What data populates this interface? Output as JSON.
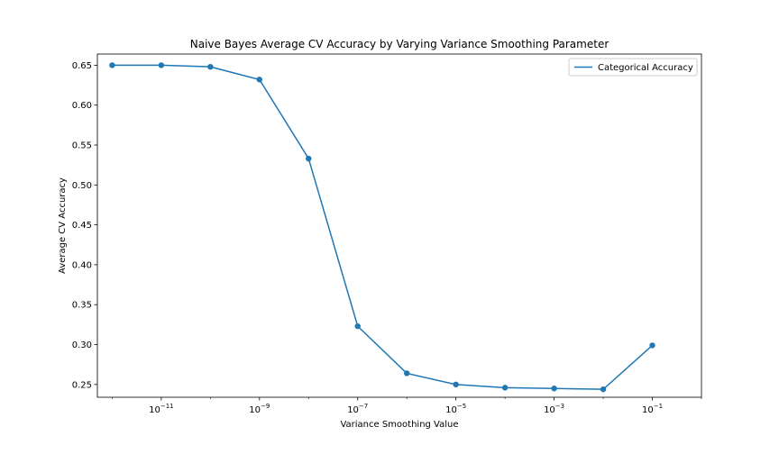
{
  "chart_data": {
    "type": "line",
    "title": "Naive Bayes Average CV Accuracy by Varying Variance Smoothing Parameter",
    "xlabel": "Variance Smoothing Value",
    "ylabel": "Average CV Accuracy",
    "xscale": "log",
    "xlim": [
      5e-13,
      1
    ],
    "ylim": [
      0.234,
      0.664
    ],
    "grid": false,
    "legend": "top-right",
    "x_ticks": [
      {
        "value": 1e-11,
        "base": "10",
        "exp": "−11"
      },
      {
        "value": 1e-09,
        "base": "10",
        "exp": "−9"
      },
      {
        "value": 1e-07,
        "base": "10",
        "exp": "−7"
      },
      {
        "value": 1e-05,
        "base": "10",
        "exp": "−5"
      },
      {
        "value": 0.001,
        "base": "10",
        "exp": "−3"
      },
      {
        "value": 0.1,
        "base": "10",
        "exp": "−1"
      }
    ],
    "y_ticks": [
      "0.25",
      "0.30",
      "0.35",
      "0.40",
      "0.45",
      "0.50",
      "0.55",
      "0.60",
      "0.65"
    ],
    "series": [
      {
        "name": "Categorical Accuracy",
        "color": "#1f77b4",
        "x": [
          1e-12,
          1e-11,
          1e-10,
          1e-09,
          1e-08,
          1e-07,
          1e-06,
          1e-05,
          0.0001,
          0.001,
          0.01,
          0.1
        ],
        "values": [
          0.65,
          0.65,
          0.648,
          0.632,
          0.533,
          0.323,
          0.264,
          0.25,
          0.246,
          0.245,
          0.244,
          0.299
        ]
      }
    ]
  }
}
